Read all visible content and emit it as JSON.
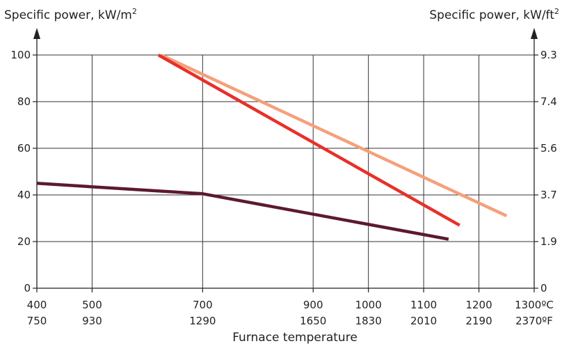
{
  "chart_data": {
    "type": "line",
    "ylabel_left": "Specific power, kW/m",
    "ylabel_left_sup": "2",
    "ylabel_right": "Specific power, kW/ft",
    "ylabel_right_sup": "2",
    "xlabel": "Furnace temperature",
    "xlim": [
      400,
      1300
    ],
    "ylim": [
      0,
      100
    ],
    "x_ticks_c": [
      {
        "value": 400,
        "label": "400"
      },
      {
        "value": 500,
        "label": "500"
      },
      {
        "value": 700,
        "label": "700"
      },
      {
        "value": 900,
        "label": "900"
      },
      {
        "value": 1000,
        "label": "1000"
      },
      {
        "value": 1100,
        "label": "1100"
      },
      {
        "value": 1200,
        "label": "1200"
      },
      {
        "value": 1300,
        "label": "1300ºC"
      }
    ],
    "x_ticks_f": [
      {
        "value": 400,
        "label": "750"
      },
      {
        "value": 500,
        "label": "930"
      },
      {
        "value": 700,
        "label": "1290"
      },
      {
        "value": 900,
        "label": "1650"
      },
      {
        "value": 1000,
        "label": "1830"
      },
      {
        "value": 1100,
        "label": "2010"
      },
      {
        "value": 1200,
        "label": "2190"
      },
      {
        "value": 1300,
        "label": "2370ºF"
      }
    ],
    "y_ticks_left": [
      {
        "value": 0,
        "label": "0"
      },
      {
        "value": 20,
        "label": "20"
      },
      {
        "value": 40,
        "label": "40"
      },
      {
        "value": 60,
        "label": "60"
      },
      {
        "value": 80,
        "label": "80"
      },
      {
        "value": 100,
        "label": "100"
      }
    ],
    "y_ticks_right": [
      {
        "value": 0,
        "label": "0"
      },
      {
        "value": 20,
        "label": "1.9"
      },
      {
        "value": 40,
        "label": "3.7"
      },
      {
        "value": 60,
        "label": "5.6"
      },
      {
        "value": 80,
        "label": "7.4"
      },
      {
        "value": 100,
        "label": "9.3"
      }
    ],
    "grid": true,
    "series": [
      {
        "color": "#f5a07a",
        "points": [
          [
            625,
            100
          ],
          [
            1250,
            31
          ]
        ]
      },
      {
        "color": "#e8302a",
        "points": [
          [
            620,
            100
          ],
          [
            1165,
            27
          ]
        ]
      },
      {
        "color": "#5c1a2e",
        "points": [
          [
            400,
            45
          ],
          [
            700,
            40.5
          ],
          [
            1145,
            21
          ]
        ]
      }
    ]
  }
}
